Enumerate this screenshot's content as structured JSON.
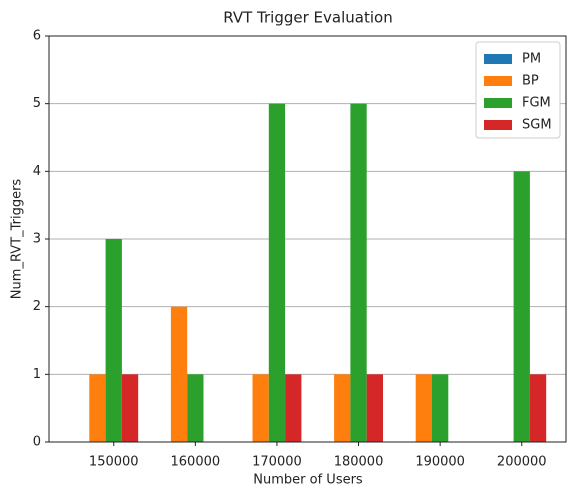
{
  "chart_data": {
    "type": "bar",
    "title": "RVT Trigger Evaluation",
    "xlabel": "Number of Users",
    "ylabel": "Num_RVT_Triggers",
    "categories": [
      "150000",
      "160000",
      "170000",
      "180000",
      "190000",
      "200000"
    ],
    "series": [
      {
        "name": "PM",
        "color": "#1f77b4",
        "values": [
          0,
          0,
          0,
          0,
          0,
          0
        ]
      },
      {
        "name": "BP",
        "color": "#ff7f0e",
        "values": [
          1,
          2,
          1,
          1,
          1,
          0
        ]
      },
      {
        "name": "FGM",
        "color": "#2ca02c",
        "values": [
          3,
          1,
          5,
          5,
          1,
          4
        ]
      },
      {
        "name": "SGM",
        "color": "#d62728",
        "values": [
          1,
          0,
          1,
          1,
          0,
          1
        ]
      }
    ],
    "ylim": [
      0,
      6
    ],
    "yticks": [
      0,
      1,
      2,
      3,
      4,
      5,
      6
    ],
    "grid": true,
    "legend": "upper right"
  }
}
